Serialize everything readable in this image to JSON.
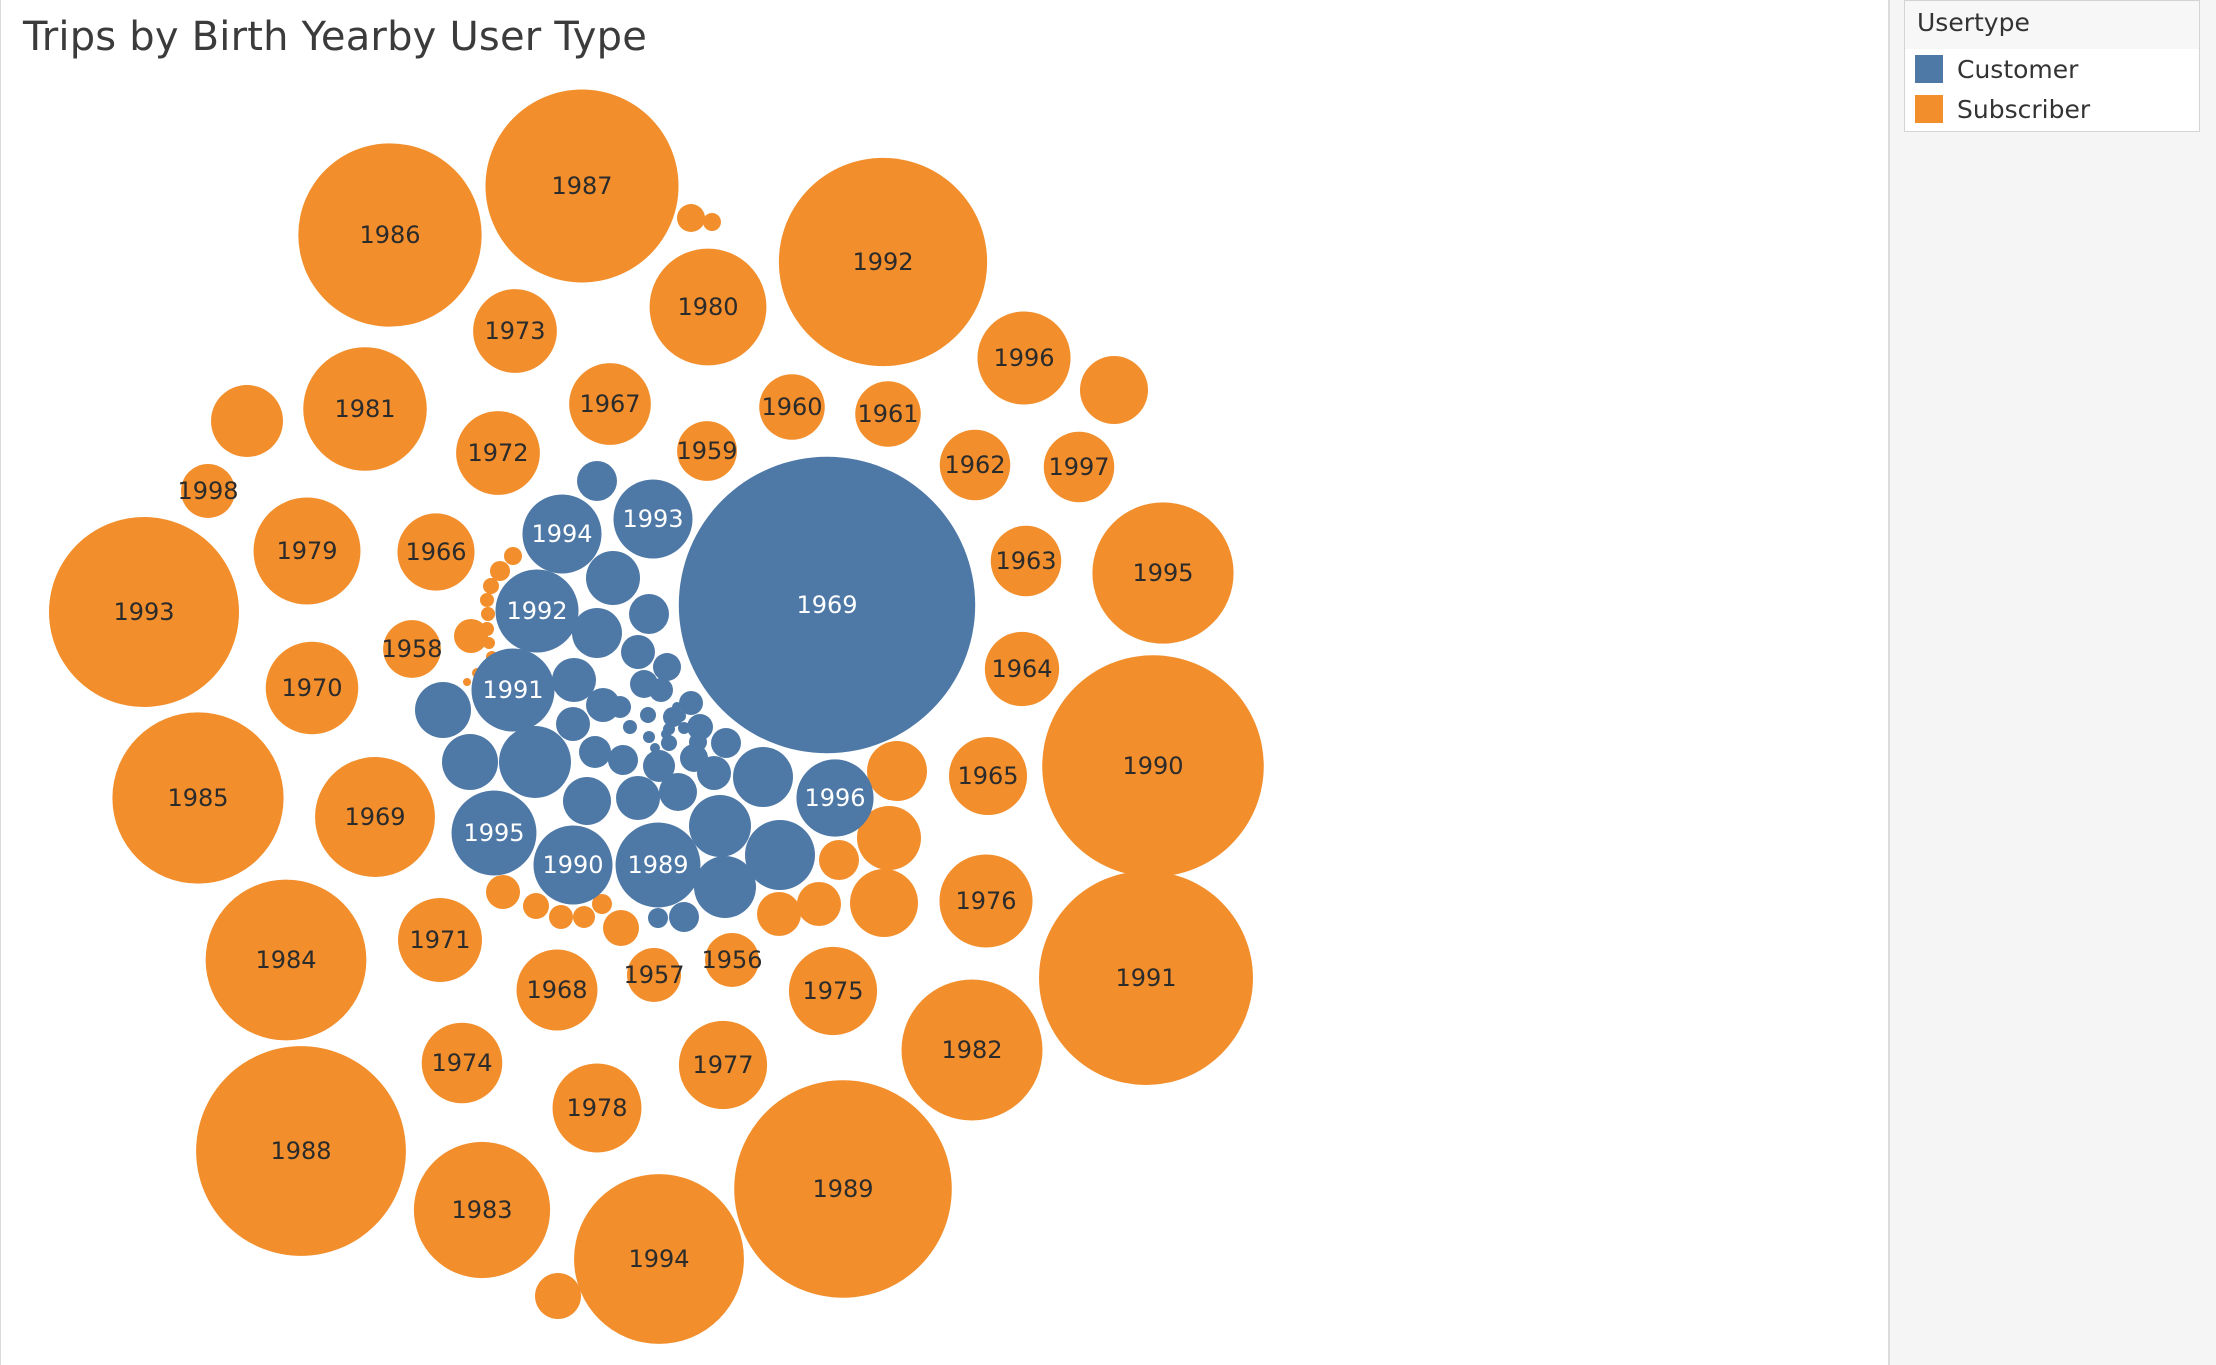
{
  "chart_data": {
    "type": "packed-bubble",
    "title": "Trips by Birth Yearby User Type",
    "legend": {
      "title": "Usertype",
      "placement": "top-right",
      "entries": [
        {
          "name": "Customer",
          "color": "#4e79a7"
        },
        {
          "name": "Subscriber",
          "color": "#f28e2b"
        }
      ]
    },
    "size_encodes": "number of trips",
    "label_dark_color": "#2b2b2b",
    "label_light_color": "#ffffff",
    "series": [
      {
        "name": "Subscriber",
        "color": "#f28e2b",
        "bubbles": [
          {
            "label": "1993",
            "relative_size": 1.0
          },
          {
            "label": "1990",
            "relative_size": 1.166
          },
          {
            "label": "1991",
            "relative_size": 1.126
          },
          {
            "label": "1989",
            "relative_size": 1.145
          },
          {
            "label": "1988",
            "relative_size": 1.104
          },
          {
            "label": "1992",
            "relative_size": 1.096
          },
          {
            "label": "1987",
            "relative_size": 1.016
          },
          {
            "label": "1986",
            "relative_size": 0.965
          },
          {
            "label": "1985",
            "relative_size": 0.901
          },
          {
            "label": "1994",
            "relative_size": 0.894
          },
          {
            "label": "1984",
            "relative_size": 0.846
          },
          {
            "label": "1995",
            "relative_size": 0.743
          },
          {
            "label": "1981",
            "relative_size": 0.65
          },
          {
            "label": "1982",
            "relative_size": 0.742
          },
          {
            "label": "1983",
            "relative_size": 0.717
          },
          {
            "label": "1969",
            "relative_size": 0.631
          },
          {
            "label": "1980",
            "relative_size": 0.615
          },
          {
            "label": "1979",
            "relative_size": 0.563
          },
          {
            "label": "1976",
            "relative_size": 0.49
          },
          {
            "label": "1975",
            "relative_size": 0.464
          },
          {
            "label": "1996",
            "relative_size": 0.49
          },
          {
            "label": "1978",
            "relative_size": 0.468
          },
          {
            "label": "1977",
            "relative_size": 0.464
          },
          {
            "label": "1970",
            "relative_size": 0.487
          },
          {
            "label": "1971",
            "relative_size": 0.442
          },
          {
            "label": "1972",
            "relative_size": 0.441
          },
          {
            "label": "1973",
            "relative_size": 0.441
          },
          {
            "label": "1968",
            "relative_size": 0.426
          },
          {
            "label": "1974",
            "relative_size": 0.424
          },
          {
            "label": "1967",
            "relative_size": 0.43
          },
          {
            "label": "1966",
            "relative_size": 0.406
          },
          {
            "label": "1965",
            "relative_size": 0.411
          },
          {
            "label": "1964",
            "relative_size": 0.391
          },
          {
            "label": "1963",
            "relative_size": 0.371
          },
          {
            "label": "1962",
            "relative_size": 0.371
          },
          {
            "label": "1997",
            "relative_size": 0.371
          },
          {
            "label": "1961",
            "relative_size": 0.345
          },
          {
            "label": "1960",
            "relative_size": 0.345
          },
          {
            "label": "1956",
            "relative_size": 0.284
          },
          {
            "label": "1959",
            "relative_size": 0.315
          },
          {
            "label": "1958",
            "relative_size": 0.304
          },
          {
            "label": "1957",
            "relative_size": 0.284
          },
          {
            "label": "1998",
            "relative_size": 0.284
          }
        ]
      },
      {
        "name": "Customer",
        "color": "#4e79a7",
        "bubbles": [
          {
            "label": "1969",
            "relative_size": 1.56
          },
          {
            "label": "1991",
            "relative_size": 0.437
          },
          {
            "label": "1992",
            "relative_size": 0.437
          },
          {
            "label": "1995",
            "relative_size": 0.447
          },
          {
            "label": "1989",
            "relative_size": 0.447
          },
          {
            "label": "1990",
            "relative_size": 0.416
          },
          {
            "label": "1994",
            "relative_size": 0.416
          },
          {
            "label": "1993",
            "relative_size": 0.416
          },
          {
            "label": "1996",
            "relative_size": 0.406
          }
        ]
      }
    ]
  }
}
